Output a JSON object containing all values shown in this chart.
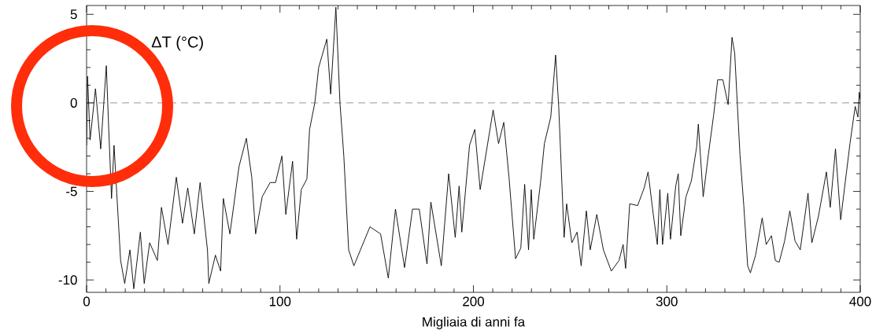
{
  "chart_data": {
    "type": "line",
    "xlabel": "Migliaia di anni fa",
    "ylabel": "ΔT (°C)",
    "x": [
      0,
      0.5,
      1.8,
      4.6,
      7.3,
      10.2,
      11.5,
      12.9,
      14.2,
      15.6,
      17.6,
      19.7,
      22.4,
      24.4,
      27.8,
      29.8,
      32.6,
      36.6,
      38.7,
      42.1,
      46.4,
      49.6,
      52.3,
      55.7,
      58.7,
      62.5,
      63.2,
      66.6,
      69.3,
      70.7,
      74.1,
      78.8,
      82.6,
      85.4,
      87.4,
      90.8,
      94.9,
      97.7,
      101,
      103,
      106.5,
      108.6,
      111,
      113.9,
      115.3,
      118,
      120,
      124.2,
      126.2,
      128.9,
      131,
      133,
      135.5,
      138.2,
      146.5,
      152,
      156,
      159.7,
      164.4,
      168.5,
      172,
      176,
      178,
      183.4,
      187.2,
      190.6,
      192.6,
      194,
      198,
      200.7,
      203.5,
      210.2,
      213,
      215.7,
      218.4,
      221.8,
      224.5,
      226.5,
      228.5,
      229.9,
      231.2,
      234.7,
      236.7,
      240,
      242.5,
      244.1,
      246.9,
      248.2,
      250.9,
      253.6,
      255.7,
      258.4,
      260.4,
      263.8,
      267.2,
      271.3,
      275.3,
      277.4,
      278.7,
      280.8,
      284.9,
      288.3,
      290.3,
      293,
      295.1,
      296.4,
      297.8,
      300.5,
      301.9,
      304.6,
      305.9,
      307.2,
      309.9,
      312.7,
      315.4,
      316.3,
      318.8,
      321.5,
      324.2,
      326.3,
      329,
      331.7,
      333.7,
      335.1,
      337.8,
      339.8,
      341.8,
      343.2,
      345.9,
      349.3,
      351.4,
      354.1,
      356.1,
      358.1,
      360.9,
      363.6,
      366.3,
      369,
      373,
      375,
      378.4,
      382.5,
      384.5,
      387.2,
      389.9,
      392,
      394.7,
      397.4,
      398.8,
      399.5,
      400
    ],
    "series": [
      {
        "color": "#000000",
        "values": [
          -2.4,
          1.5,
          -2.1,
          0.8,
          -2.6,
          2.1,
          -1.6,
          -5.4,
          -2.4,
          -5.1,
          -8.9,
          -10.2,
          -8.3,
          -10.5,
          -7.3,
          -10.2,
          -7.9,
          -8.9,
          -5.9,
          -8,
          -4.2,
          -6.8,
          -4.8,
          -7.4,
          -4.5,
          -8.3,
          -10.2,
          -8.6,
          -9.5,
          -5.4,
          -7.4,
          -3.6,
          -2,
          -4.2,
          -7.4,
          -5.3,
          -4.5,
          -4.5,
          -3,
          -6.3,
          -3.3,
          -7.7,
          -4.9,
          -4.3,
          -1.5,
          0,
          2,
          3.6,
          0.5,
          5.4,
          0,
          -3,
          -8.3,
          -9.2,
          -7,
          -7.4,
          -9.9,
          -6,
          -9.3,
          -6,
          -6,
          -9.1,
          -5.6,
          -9.2,
          -4,
          -7.6,
          -4.7,
          -7.3,
          -2.4,
          -1.5,
          -4.9,
          -0.4,
          -2.3,
          -1.1,
          -4.2,
          -8.8,
          -8.2,
          -4.6,
          -8.3,
          -4.9,
          -7.7,
          -4.5,
          -2.3,
          -0.8,
          2.7,
          -0.2,
          -7.6,
          -5.7,
          -7.9,
          -7.3,
          -9.2,
          -6.1,
          -8.3,
          -6.3,
          -8.3,
          -9.5,
          -8.9,
          -8,
          -9.35,
          -5.7,
          -5.8,
          -4.8,
          -3.9,
          -6.3,
          -8,
          -4.9,
          -8,
          -5.1,
          -7.7,
          -4.7,
          -4,
          -7.5,
          -5.3,
          -4.4,
          -2.5,
          -1.2,
          -5.3,
          -2.9,
          -0.7,
          1.3,
          1.3,
          -0.1,
          3.7,
          2.8,
          -2.9,
          -5.8,
          -9.2,
          -9.6,
          -8.6,
          -6.5,
          -8,
          -7.5,
          -8.9,
          -9,
          -7.8,
          -6.1,
          -7.8,
          -8.3,
          -5.1,
          -7.9,
          -6.4,
          -3.9,
          -5.9,
          -2.6,
          -6.6,
          -4.7,
          -2.3,
          -0.2,
          -0.8,
          0.6,
          0.2
        ]
      }
    ],
    "xlim": [
      0,
      400
    ],
    "ylim": [
      -10.7,
      5.5
    ],
    "xticks": [
      0,
      100,
      200,
      300,
      400
    ],
    "yticks": [
      -10,
      -5,
      0,
      5
    ],
    "ref_lines": [
      {
        "axis": "y",
        "value": 0,
        "color": "#000000",
        "line_style": "dashed"
      }
    ],
    "grid": false
  }
}
